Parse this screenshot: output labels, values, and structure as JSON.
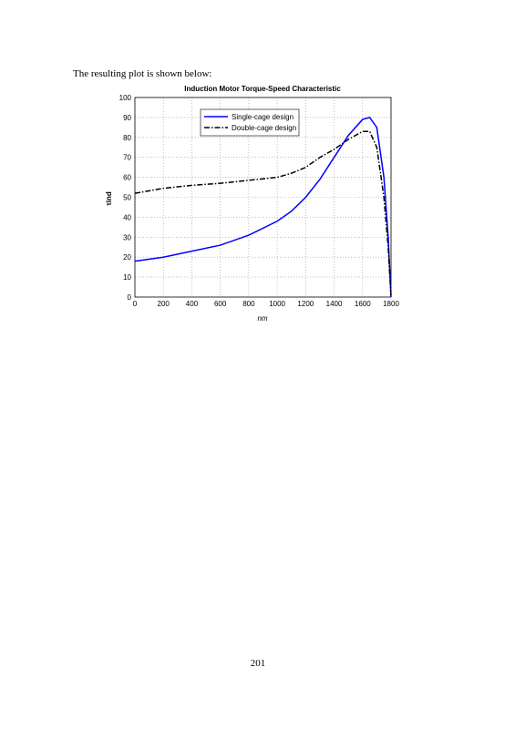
{
  "intro": "The resulting plot is shown below:",
  "chart_data": {
    "type": "line",
    "title": "Induction Motor Torque-Speed Characteristic",
    "xlabel": "nm",
    "ylabel": "τind",
    "x": [
      0,
      200,
      400,
      600,
      800,
      1000,
      1100,
      1200,
      1300,
      1400,
      1500,
      1600,
      1650,
      1700,
      1750,
      1780,
      1800
    ],
    "series": [
      {
        "name": "Single-cage design",
        "color": "#0000ff",
        "dash": "solid",
        "values": [
          18,
          20,
          23,
          26,
          31,
          38,
          43,
          50,
          59,
          70,
          81,
          89,
          90,
          85,
          60,
          30,
          0
        ]
      },
      {
        "name": "Double-cage design",
        "color": "#000000",
        "dash": "dashdot",
        "values": [
          52,
          54.5,
          56,
          57,
          58.5,
          60,
          62,
          65,
          70,
          74,
          79,
          83,
          83,
          75,
          50,
          25,
          0
        ]
      }
    ],
    "xlim": [
      0,
      1800
    ],
    "xticks": [
      0,
      200,
      400,
      600,
      800,
      1000,
      1200,
      1400,
      1600,
      1800
    ],
    "ylim": [
      0,
      100
    ],
    "yticks": [
      0,
      10,
      20,
      30,
      40,
      50,
      60,
      70,
      80,
      90,
      100
    ],
    "grid": true,
    "legend": "top"
  },
  "page_number": "201"
}
